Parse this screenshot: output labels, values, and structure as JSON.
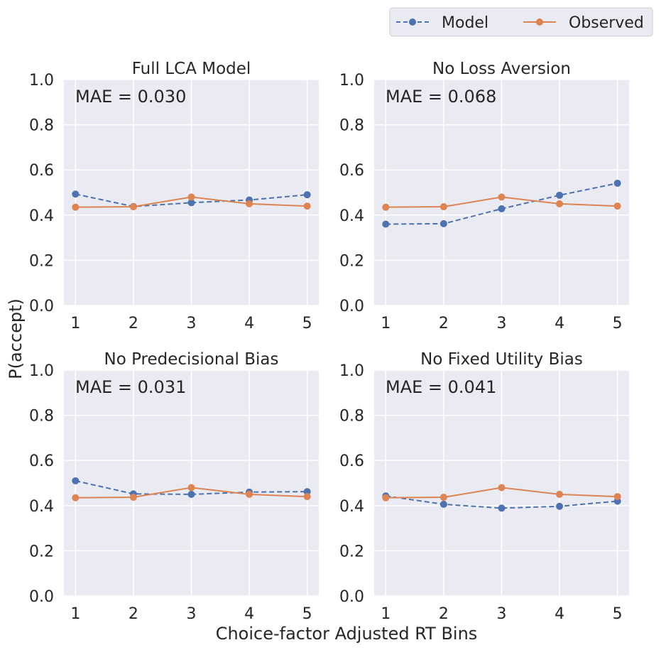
{
  "chart_data": {
    "type": "line",
    "xlabel": "Choice-factor Adjusted RT Bins",
    "ylabel": "P(accept)",
    "legend": {
      "placement": "top-right",
      "entries": [
        {
          "label": "Model",
          "color": "#4c72b0",
          "style": "dashed"
        },
        {
          "label": "Observed",
          "color": "#dd8452",
          "style": "solid"
        }
      ]
    },
    "x": [
      1,
      2,
      3,
      4,
      5
    ],
    "xticks": [
      "1",
      "2",
      "3",
      "4",
      "5"
    ],
    "ylim": [
      0,
      1.0
    ],
    "yticks": [
      "0.0",
      "0.2",
      "0.4",
      "0.6",
      "0.8",
      "1.0"
    ],
    "grid": true,
    "panels": [
      {
        "title": "Full LCA Model",
        "annotation": "MAE = 0.030",
        "series": [
          {
            "name": "Model",
            "values": [
              0.493,
              0.438,
              0.455,
              0.467,
              0.49
            ]
          },
          {
            "name": "Observed",
            "values": [
              0.435,
              0.437,
              0.48,
              0.45,
              0.44
            ]
          }
        ]
      },
      {
        "title": "No Loss Aversion",
        "annotation": "MAE = 0.068",
        "series": [
          {
            "name": "Model",
            "values": [
              0.36,
              0.362,
              0.428,
              0.488,
              0.541
            ]
          },
          {
            "name": "Observed",
            "values": [
              0.435,
              0.437,
              0.48,
              0.45,
              0.44
            ]
          }
        ]
      },
      {
        "title": "No Predecisional Bias",
        "annotation": "MAE = 0.031",
        "series": [
          {
            "name": "Model",
            "values": [
              0.51,
              0.452,
              0.45,
              0.46,
              0.462
            ]
          },
          {
            "name": "Observed",
            "values": [
              0.435,
              0.437,
              0.48,
              0.45,
              0.44
            ]
          }
        ]
      },
      {
        "title": "No Fixed Utility Bias",
        "annotation": "MAE = 0.041",
        "series": [
          {
            "name": "Model",
            "values": [
              0.443,
              0.406,
              0.389,
              0.397,
              0.42
            ]
          },
          {
            "name": "Observed",
            "values": [
              0.435,
              0.437,
              0.48,
              0.45,
              0.44
            ]
          }
        ]
      }
    ]
  }
}
